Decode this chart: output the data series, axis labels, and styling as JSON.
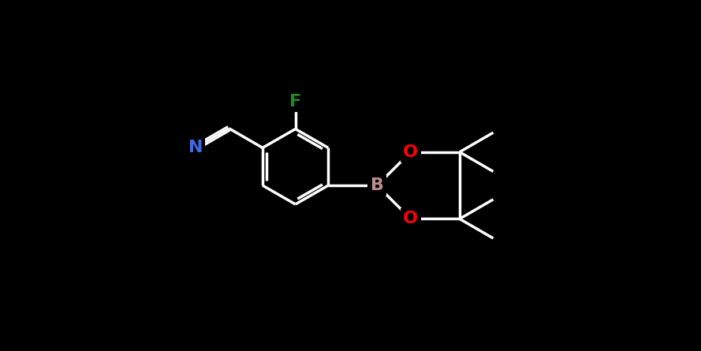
{
  "background_color": "#000000",
  "atom_colors": {
    "C": "#ffffff",
    "N": "#4169E1",
    "O": "#FF0000",
    "B": "#BC8F8F",
    "F": "#228B22"
  },
  "bond_color": "#ffffff",
  "bond_width": 2.5,
  "figure_width": 8.89,
  "figure_height": 4.45,
  "dpi": 100,
  "font_size": 16,
  "font_weight": "bold",
  "font_family": "DejaVu Sans",
  "xlim": [
    0,
    889
  ],
  "ylim": [
    0,
    445
  ]
}
